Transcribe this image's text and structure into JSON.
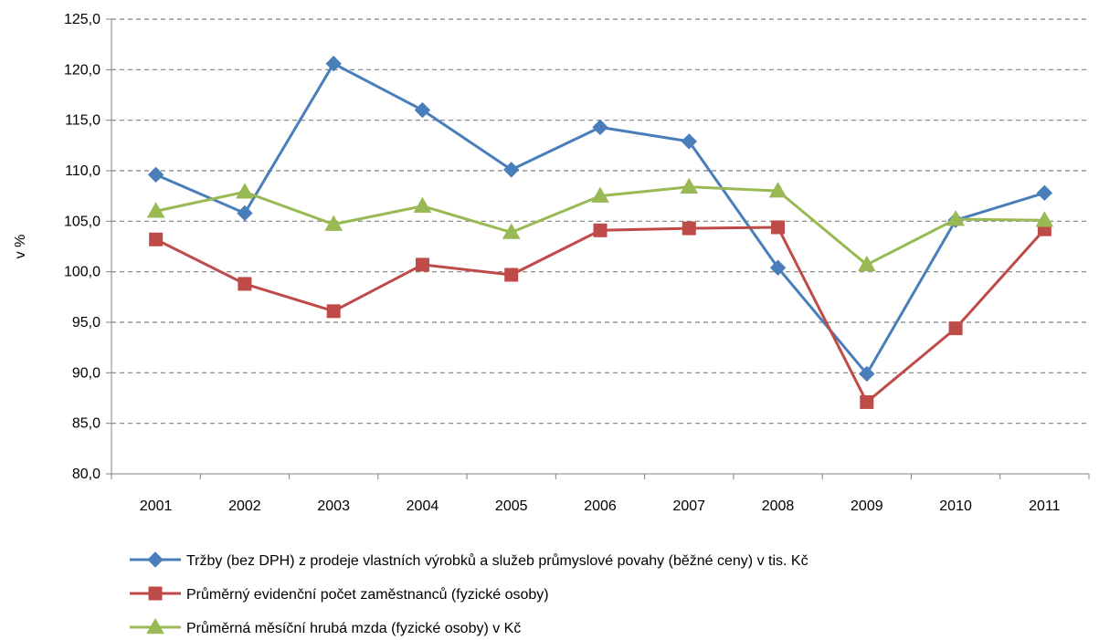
{
  "chart_data": {
    "type": "line",
    "title": "",
    "xlabel": "",
    "ylabel": "v %",
    "ylim": [
      80,
      125
    ],
    "yticks": [
      "80,0",
      "85,0",
      "90,0",
      "95,0",
      "100,0",
      "105,0",
      "110,0",
      "115,0",
      "120,0",
      "125,0"
    ],
    "ytick_values": [
      80,
      85,
      90,
      95,
      100,
      105,
      110,
      115,
      120,
      125
    ],
    "categories": [
      "2001",
      "2002",
      "2003",
      "2004",
      "2005",
      "2006",
      "2007",
      "2008",
      "2009",
      "2010",
      "2011"
    ],
    "grid": "horizontal dashed",
    "legend_placement": "bottom",
    "series": [
      {
        "name": "Tržby (bez DPH) z prodeje vlastních výrobků a služeb průmyslové povahy (běžné ceny) v tis. Kč",
        "color": "#4a7ebb",
        "marker": "diamond",
        "values": [
          109.6,
          105.8,
          120.6,
          116.0,
          110.1,
          114.3,
          112.9,
          100.4,
          89.9,
          105.1,
          107.8
        ]
      },
      {
        "name": "Průměrný evidenční počet zaměstnanců (fyzické osoby)",
        "color": "#be4b48",
        "marker": "square",
        "values": [
          103.2,
          98.8,
          96.1,
          100.7,
          99.7,
          104.1,
          104.3,
          104.4,
          87.1,
          94.4,
          104.2
        ]
      },
      {
        "name": "Průměrná měsíční hrubá mzda (fyzické osoby) v Kč",
        "color": "#98b954",
        "marker": "triangle",
        "values": [
          106.0,
          107.9,
          104.7,
          106.5,
          103.9,
          107.5,
          108.4,
          108.0,
          100.7,
          105.2,
          105.1
        ]
      }
    ]
  }
}
